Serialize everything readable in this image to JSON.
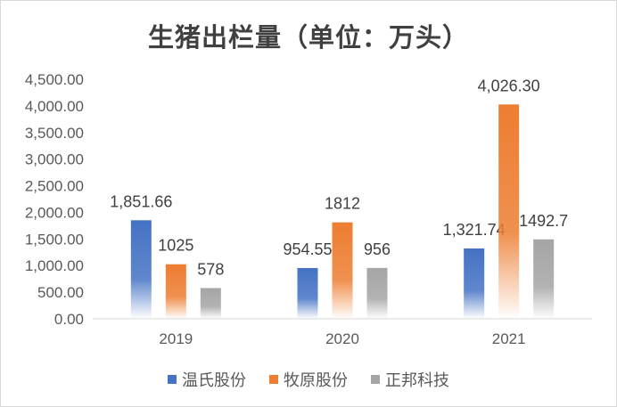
{
  "chart_data": {
    "type": "bar",
    "title": "生猪出栏量（单位：万头）",
    "categories": [
      "2019",
      "2020",
      "2021"
    ],
    "series": [
      {
        "name": "温氏股份",
        "values": [
          1851.66,
          954.55,
          1321.74
        ],
        "labels": [
          "1,851.66",
          "954.55",
          "1,321.74"
        ],
        "color": "#4472c4"
      },
      {
        "name": "牧原股份",
        "values": [
          1025,
          1812,
          4026.3
        ],
        "labels": [
          "1025",
          "1812",
          "4,026.30"
        ],
        "color": "#ed7d31"
      },
      {
        "name": "正邦科技",
        "values": [
          578,
          956,
          1492.7
        ],
        "labels": [
          "578",
          "956",
          "1492.7"
        ],
        "color": "#a5a5a5"
      }
    ],
    "ylim": [
      0,
      4500
    ],
    "yticks": [
      "0.00",
      "500.00",
      "1,000.00",
      "1,500.00",
      "2,000.00",
      "2,500.00",
      "3,000.00",
      "3,500.00",
      "4,000.00",
      "4,500.00"
    ],
    "xlabel": "",
    "ylabel": "",
    "legend_position": "bottom",
    "grid": false
  }
}
